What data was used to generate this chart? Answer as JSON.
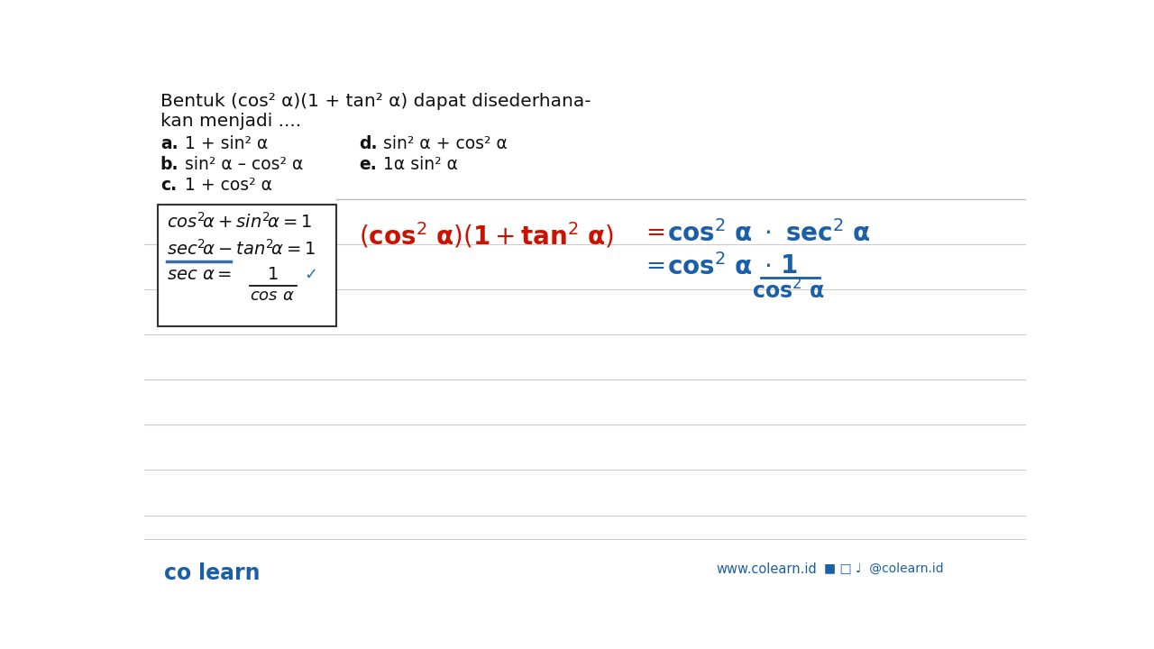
{
  "bg_color": "#ffffff",
  "line_color": "#cccccc",
  "question_text_line1": "Bentuk (cos² α)(1 + tan² α) dapat disederhana-",
  "question_text_line2": "kan menjadi ....",
  "options": [
    {
      "label": "a.",
      "text": "1 + sin² α",
      "col": 0,
      "row": 0
    },
    {
      "label": "b.",
      "text": "sin² α – cos² α",
      "col": 0,
      "row": 1
    },
    {
      "label": "c.",
      "text": "1 + cos² α",
      "col": 0,
      "row": 2
    },
    {
      "label": "d.",
      "text": "sin² α + cos² α",
      "col": 1,
      "row": 0
    },
    {
      "label": "e.",
      "text": "1α sin² α",
      "col": 1,
      "row": 1
    }
  ],
  "footer_left": "co  learn",
  "footer_web": "www.colearn.id",
  "footer_social": "@colearn.id"
}
